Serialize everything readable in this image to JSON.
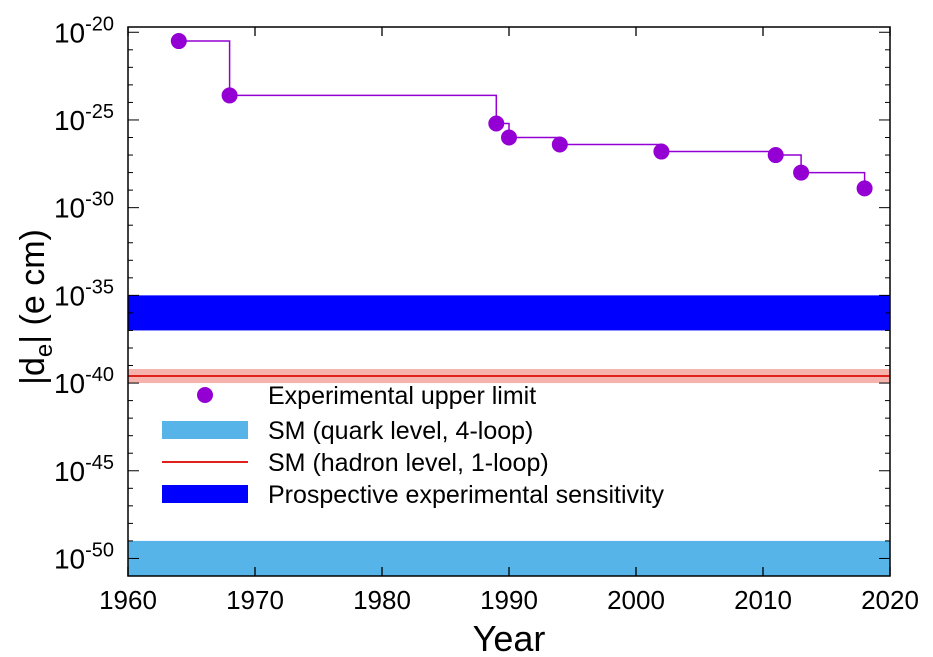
{
  "chart_data": {
    "type": "scatter",
    "title": "",
    "xlabel": "Year",
    "ylabel_main": "|d",
    "ylabel_sub": "e",
    "ylabel_rest": "| (e cm)",
    "xlim": [
      1960,
      2020
    ],
    "ylim_log10": [
      -51,
      -19.7
    ],
    "yscale": "log",
    "xticks": [
      1960,
      1970,
      1980,
      1990,
      2000,
      2010,
      2020
    ],
    "yticks": [
      {
        "base": "10",
        "exp": "-20",
        "value": -20
      },
      {
        "base": "10",
        "exp": "-25",
        "value": -25
      },
      {
        "base": "10",
        "exp": "-30",
        "value": -30
      },
      {
        "base": "10",
        "exp": "-35",
        "value": -35
      },
      {
        "base": "10",
        "exp": "-40",
        "value": -40
      },
      {
        "base": "10",
        "exp": "-45",
        "value": -45
      },
      {
        "base": "10",
        "exp": "-50",
        "value": -50
      }
    ],
    "grid": false,
    "legend_position": "lower-left",
    "series": [
      {
        "name": "Experimental upper limit",
        "kind": "points-with-step",
        "color": "#9400d3",
        "points": [
          {
            "x": 1964,
            "log10_y": -20.5
          },
          {
            "x": 1968,
            "log10_y": -23.6
          },
          {
            "x": 1989,
            "log10_y": -25.2
          },
          {
            "x": 1990,
            "log10_y": -26.0
          },
          {
            "x": 1994,
            "log10_y": -26.4
          },
          {
            "x": 2002,
            "log10_y": -26.8
          },
          {
            "x": 2011,
            "log10_y": -27.0
          },
          {
            "x": 2013,
            "log10_y": -28.0
          },
          {
            "x": 2018,
            "log10_y": -28.9
          }
        ]
      },
      {
        "name": "SM (quark level, 4-loop)",
        "kind": "band",
        "color": "#56b4e9",
        "log10_range": [
          -51.0,
          -49.0
        ]
      },
      {
        "name": "SM (hadron level, 1-loop)",
        "kind": "line-with-band",
        "color": "#e0201a",
        "band_color": "#f6b3ae",
        "log10_value": -39.6,
        "log10_band": [
          -40.0,
          -39.2
        ]
      },
      {
        "name": "Prospective experimental sensitivity",
        "kind": "band",
        "color": "#0000ff",
        "log10_range": [
          -37.0,
          -35.0
        ]
      }
    ]
  }
}
